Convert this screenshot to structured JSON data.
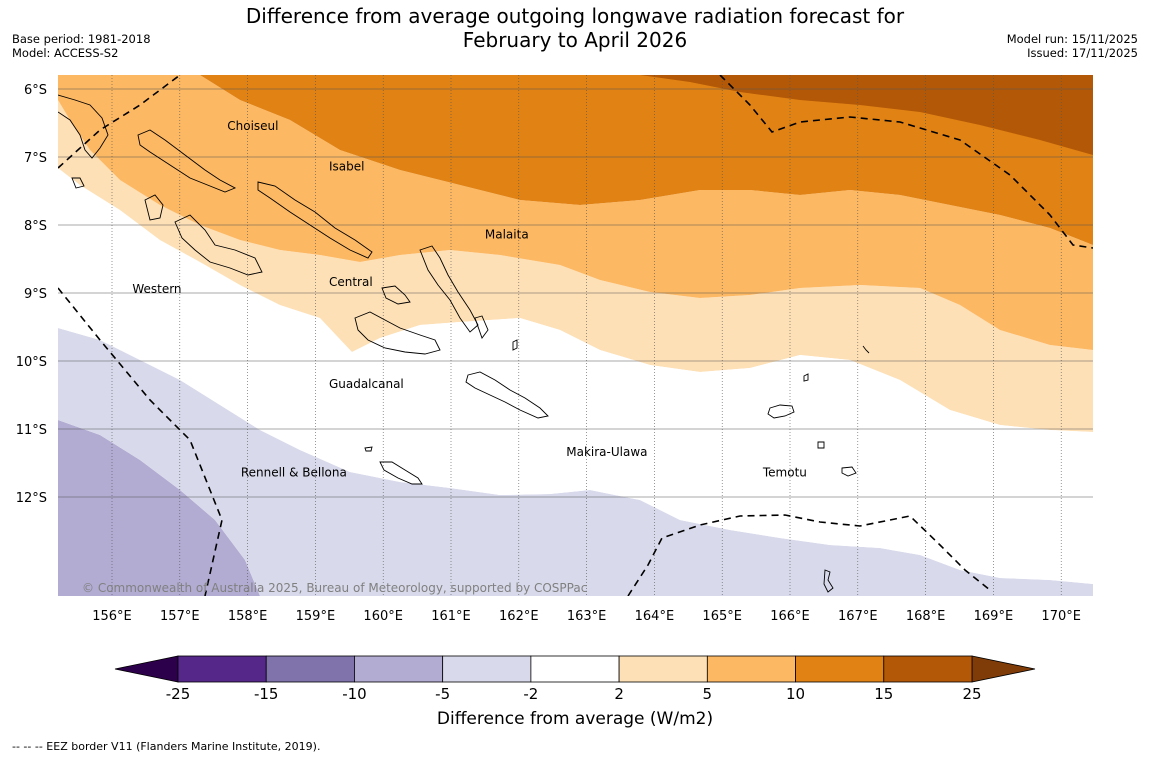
{
  "title_line1": "Difference from average outgoing longwave radiation forecast for",
  "title_line2": "February to April 2026",
  "base_period": "Base period: 1981-2018",
  "model": "Model: ACCESS-S2",
  "model_run": "Model run: 15/11/2025",
  "issued": "Issued: 17/11/2025",
  "copyright": "© Commonwealth of Australia 2025, Bureau of Meteorology, supported by COSPPac",
  "footer": "--  --  -- EEZ border V11 (Flanders Marine Institute, 2019).",
  "lat_labels": [
    "6°S",
    "7°S",
    "8°S",
    "9°S",
    "10°S",
    "11°S",
    "12°S"
  ],
  "lon_labels": [
    "156°E",
    "157°E",
    "158°E",
    "159°E",
    "160°E",
    "161°E",
    "162°E",
    "163°E",
    "164°E",
    "165°E",
    "166°E",
    "167°E",
    "168°E",
    "169°E",
    "170°E"
  ],
  "regions": [
    {
      "name": "Choiseul",
      "lon": 157.7,
      "lat": -6.6
    },
    {
      "name": "Isabel",
      "lon": 159.2,
      "lat": -7.2
    },
    {
      "name": "Malaita",
      "lon": 161.5,
      "lat": -8.2
    },
    {
      "name": "Western",
      "lon": 156.3,
      "lat": -9.0
    },
    {
      "name": "Central",
      "lon": 159.2,
      "lat": -8.9
    },
    {
      "name": "Guadalcanal",
      "lon": 159.2,
      "lat": -10.4
    },
    {
      "name": "Makira-Ulawa",
      "lon": 162.7,
      "lat": -11.4
    },
    {
      "name": "Rennell & Bellona",
      "lon": 157.9,
      "lat": -11.7
    },
    {
      "name": "Temotu",
      "lon": 165.6,
      "lat": -11.7
    }
  ],
  "colorbar": {
    "title": "Difference from average (W/m2)",
    "ticks": [
      "-25",
      "-15",
      "-10",
      "-5",
      "-2",
      "2",
      "5",
      "10",
      "15",
      "25"
    ],
    "colors": [
      "#542788",
      "#8073ac",
      "#b2abd2",
      "#d8daeb",
      "#ffffff",
      "#fee0b6",
      "#fdb863",
      "#e08214",
      "#b35806"
    ],
    "under_color": "#2d004b",
    "over_color": "#7f3b08"
  }
}
